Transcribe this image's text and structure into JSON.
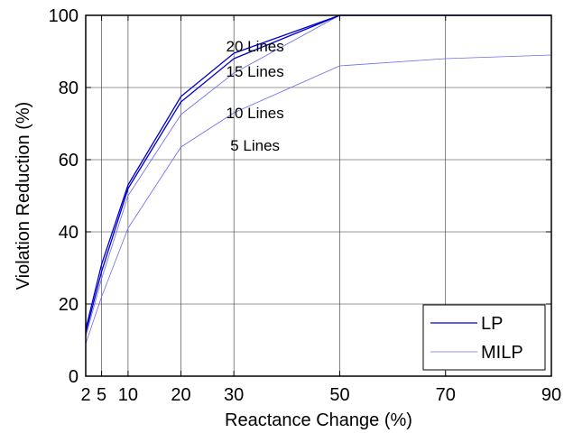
{
  "chart_data": {
    "type": "line",
    "xlabel": "Reactance Change (%)",
    "ylabel": "Violation Reduction (%)",
    "xlim": [
      2,
      90
    ],
    "ylim": [
      0,
      100
    ],
    "x": [
      2,
      5,
      10,
      20,
      30,
      50,
      70,
      90
    ],
    "xticks": [
      2,
      5,
      10,
      20,
      30,
      50,
      70,
      90
    ],
    "xtick_labels": [
      "2",
      "5",
      "10",
      "20",
      "30",
      "50",
      "70",
      "90"
    ],
    "yticks": [
      0,
      20,
      40,
      60,
      80,
      100
    ],
    "ytick_labels": [
      "0",
      "20",
      "40",
      "60",
      "80",
      "100"
    ],
    "grid": true,
    "legend_position": "bottom-right",
    "legend": [
      {
        "label": "LP",
        "color": "#0000cc",
        "stroke_width": 1.3
      },
      {
        "label": "MILP",
        "color": "#6a6af0",
        "stroke_width": 0.8
      }
    ],
    "series": [
      {
        "label": "5 Lines",
        "style": "MILP",
        "values": [
          9,
          22,
          41,
          63.5,
          73,
          86,
          88,
          89
        ]
      },
      {
        "label": "10 Lines",
        "style": "MILP",
        "values": [
          11,
          27,
          50,
          72.5,
          84,
          100,
          100,
          100
        ]
      },
      {
        "label": "15 Lines",
        "style": "LP",
        "values": [
          12,
          29,
          52,
          76,
          88,
          100,
          100,
          100
        ]
      },
      {
        "label": "20 Lines",
        "style": "LP",
        "values": [
          13,
          31,
          53,
          77.5,
          89.5,
          100,
          100,
          100
        ]
      }
    ],
    "annotations": [
      {
        "text": "20 Lines",
        "x": 34,
        "y": 91.5
      },
      {
        "text": "15 Lines",
        "x": 34,
        "y": 84.5
      },
      {
        "text": "10 Lines",
        "x": 34,
        "y": 73
      },
      {
        "text": "5 Lines",
        "x": 34,
        "y": 64
      }
    ]
  }
}
